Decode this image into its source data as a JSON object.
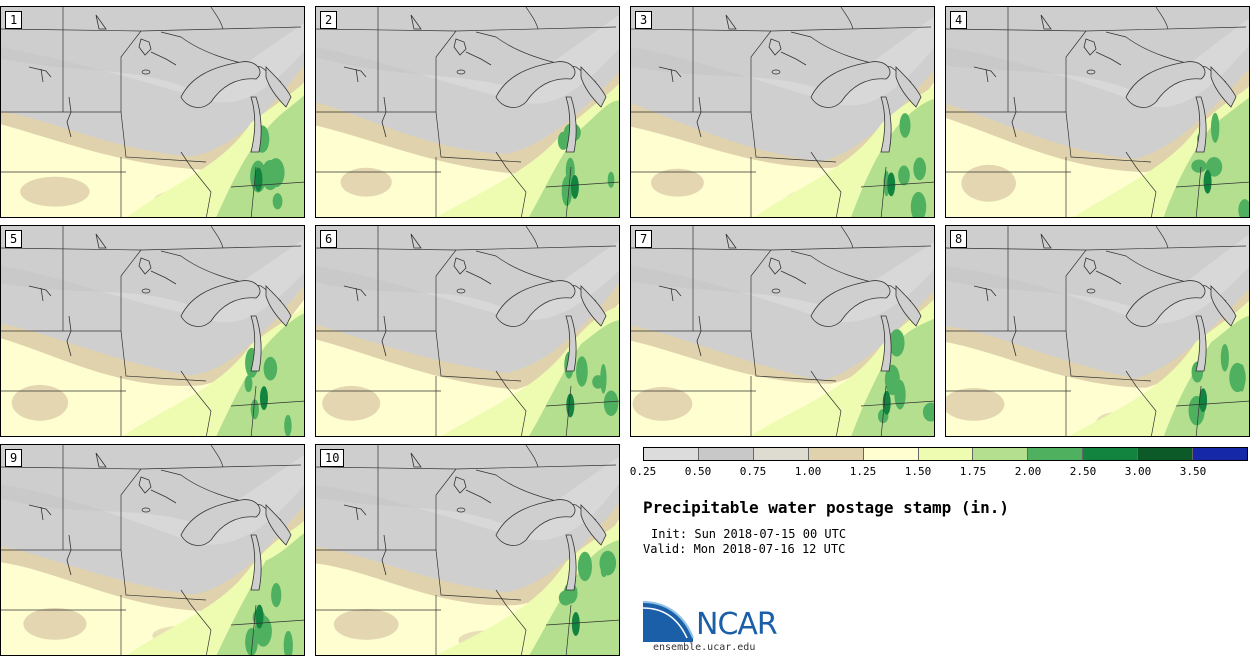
{
  "panels": [
    {
      "label": "1"
    },
    {
      "label": "2"
    },
    {
      "label": "3"
    },
    {
      "label": "4"
    },
    {
      "label": "5"
    },
    {
      "label": "6"
    },
    {
      "label": "7"
    },
    {
      "label": "8"
    },
    {
      "label": "9"
    },
    {
      "label": "10"
    }
  ],
  "colorbar": {
    "labels": [
      "0.25",
      "0.50",
      "0.75",
      "1.00",
      "1.25",
      "1.50",
      "1.75",
      "2.00",
      "2.50",
      "3.00",
      "3.50"
    ],
    "colors": [
      "#dcdcdc",
      "#c8c8c8",
      "#dedcd0",
      "#e0d2ac",
      "#fefed0",
      "#edfcb0",
      "#b3df8f",
      "#4fb060",
      "#138440",
      "#0c5a28",
      "#1428a8"
    ]
  },
  "title": "Precipitable water postage stamp (in.)",
  "init": "Init: Sun 2018-07-15 00 UTC",
  "valid": "Valid: Mon 2018-07-16 12 UTC",
  "logo": {
    "text": "NCAR",
    "url": "ensemble.ucar.edu"
  }
}
